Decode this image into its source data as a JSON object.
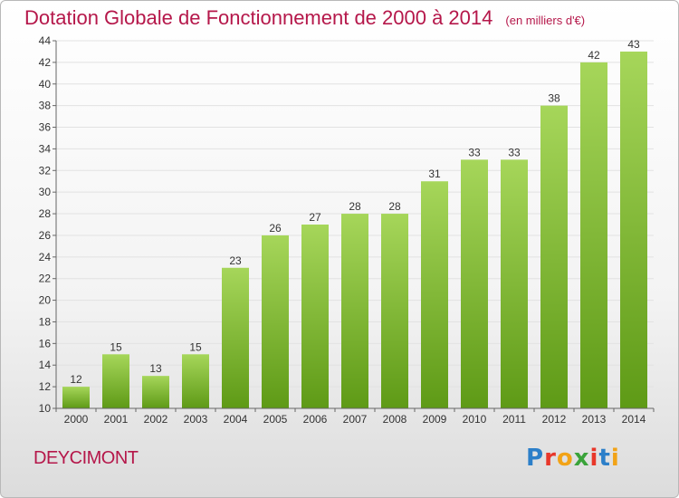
{
  "brand": {
    "name": "Proxiti",
    "letter_colors": [
      "#2c7fc9",
      "#e8372a",
      "#f2a317",
      "#3aa33a",
      "#e8372a",
      "#2c7fc9",
      "#f2a317"
    ]
  },
  "commune": "DEYCIMONT",
  "colors": {
    "title": "#b5174a",
    "bar_light": "#a6d65a",
    "bar_dark": "#5e9a16",
    "grid": "#e2e2e2",
    "axis": "#666666"
  },
  "chart_data": {
    "type": "bar",
    "title": "Dotation Globale de Fonctionnement de 2000 à 2014",
    "subtitle": "(en milliers d'€)",
    "xlabel": "",
    "ylabel": "",
    "categories": [
      "2000",
      "2001",
      "2002",
      "2003",
      "2004",
      "2005",
      "2006",
      "2007",
      "2008",
      "2009",
      "2010",
      "2011",
      "2012",
      "2013",
      "2014"
    ],
    "values": [
      12,
      15,
      13,
      15,
      23,
      26,
      27,
      28,
      28,
      31,
      33,
      33,
      38,
      42,
      43
    ],
    "ylim": [
      10,
      44
    ],
    "yticks": [
      10,
      12,
      14,
      16,
      18,
      20,
      22,
      24,
      26,
      28,
      30,
      32,
      34,
      36,
      38,
      40,
      42,
      44
    ],
    "grid": true,
    "legend": "none"
  }
}
